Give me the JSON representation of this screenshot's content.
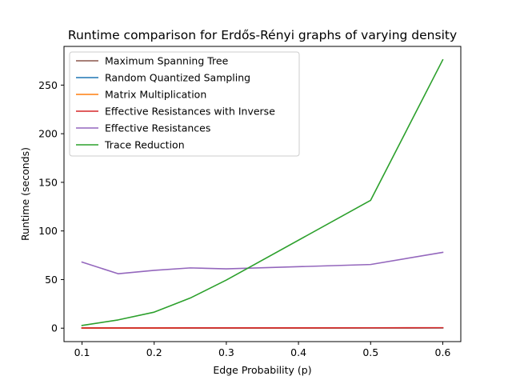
{
  "chart_data": {
    "type": "line",
    "title": "Runtime comparison for Erdős-Rényi graphs of varying density",
    "xlabel": "Edge Probability (p)",
    "ylabel": "Runtime (seconds)",
    "xlim": [
      0.075,
      0.625
    ],
    "ylim": [
      -13.8,
      289.8
    ],
    "xticks": [
      0.1,
      0.2,
      0.3,
      0.4,
      0.5,
      0.6
    ],
    "xtick_labels": [
      "0.1",
      "0.2",
      "0.3",
      "0.4",
      "0.5",
      "0.6"
    ],
    "yticks": [
      0,
      50,
      100,
      150,
      200,
      250
    ],
    "ytick_labels": [
      "0",
      "50",
      "100",
      "150",
      "200",
      "250"
    ],
    "grid": false,
    "legend_position": "top-left",
    "x": [
      0.1,
      0.15,
      0.2,
      0.25,
      0.3,
      0.5,
      0.6
    ],
    "series": [
      {
        "name": "Maximum Spanning Tree",
        "color": "#8c564b",
        "values": [
          0.1,
          0.1,
          0.1,
          0.1,
          0.1,
          0.2,
          0.3
        ]
      },
      {
        "name": "Random Quantized Sampling",
        "color": "#1f77b4",
        "values": [
          0.1,
          0.1,
          0.1,
          0.1,
          0.1,
          0.2,
          0.2
        ]
      },
      {
        "name": "Matrix Multiplication",
        "color": "#ff7f0e",
        "values": [
          0.1,
          0.1,
          0.1,
          0.2,
          0.2,
          0.3,
          0.4
        ]
      },
      {
        "name": "Effective Resistances with Inverse",
        "color": "#d62728",
        "values": [
          0.2,
          0.2,
          0.2,
          0.3,
          0.3,
          0.4,
          0.5
        ]
      },
      {
        "name": "Effective Resistances",
        "color": "#9467bd",
        "values": [
          68,
          56,
          59.5,
          62,
          61,
          65.5,
          78
        ]
      },
      {
        "name": "Trace Reduction",
        "color": "#2ca02c",
        "values": [
          2.8,
          8.5,
          16.5,
          31,
          49.5,
          131.5,
          276
        ]
      }
    ]
  }
}
